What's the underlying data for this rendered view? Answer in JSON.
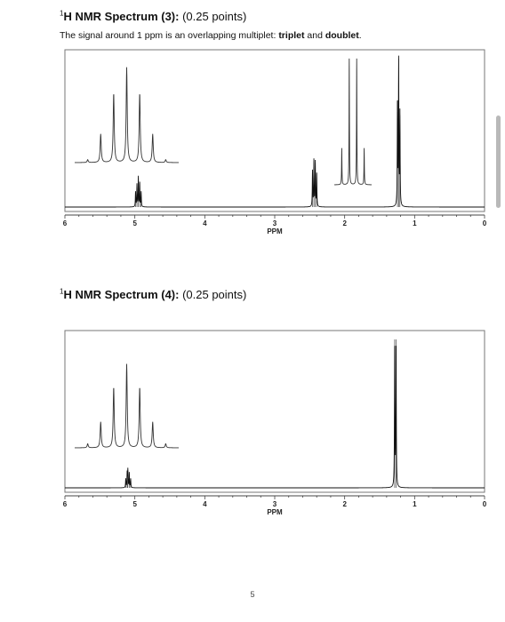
{
  "sections": [
    {
      "title_sup": "1",
      "title_bold": "H NMR Spectrum (3):",
      "title_points": " (0.25 points)",
      "note_parts": {
        "pre": "The signal around 1 ppm is an overlapping multiplet: ",
        "b1": "triplet",
        "mid": " and ",
        "b2": "doublet",
        "post": "."
      }
    },
    {
      "title_sup": "1",
      "title_bold": "H NMR Spectrum (4):",
      "title_points": " (0.25 points)"
    }
  ],
  "page_number": "5",
  "chart_data": [
    {
      "type": "line",
      "xlabel": "PPM",
      "xlim": [
        6,
        0
      ],
      "tick_labels": [
        "6",
        "5",
        "4",
        "3",
        "2",
        "1",
        "0"
      ],
      "peaks": [
        {
          "ppm": 4.95,
          "multiplicity": "septet-like",
          "lines": [
            [
              4.99,
              0.1
            ],
            [
              4.97,
              0.15
            ],
            [
              4.95,
              0.2
            ],
            [
              4.93,
              0.16
            ],
            [
              4.91,
              0.1
            ]
          ]
        },
        {
          "ppm": 2.43,
          "multiplicity": "quartet",
          "lines": [
            [
              2.46,
              0.24
            ],
            [
              2.44,
              0.31
            ],
            [
              2.42,
              0.3
            ],
            [
              2.4,
              0.22
            ]
          ]
        },
        {
          "ppm": 1.22,
          "multiplicity": "triplet + doublet",
          "lines": [
            [
              1.245,
              0.72
            ],
            [
              1.228,
              1.0
            ],
            [
              1.21,
              0.62
            ]
          ]
        }
      ],
      "insets": [
        {
          "of_ppm": 4.95,
          "relative_heights": [
            0.03,
            0.3,
            0.73,
            1.0,
            0.73,
            0.3,
            0.03
          ]
        },
        {
          "of_ppm": 1.22,
          "relative_heights": [
            0.29,
            1.0,
            1.0,
            0.29
          ]
        }
      ]
    },
    {
      "type": "line",
      "xlabel": "PPM",
      "xlim": [
        6,
        0
      ],
      "tick_labels": [
        "6",
        "5",
        "4",
        "3",
        "2",
        "1",
        "0"
      ],
      "peaks": [
        {
          "ppm": 5.1,
          "multiplicity": "septet",
          "lines": [
            [
              5.13,
              0.06
            ],
            [
              5.11,
              0.1
            ],
            [
              5.1,
              0.12
            ],
            [
              5.08,
              0.1
            ],
            [
              5.06,
              0.06
            ]
          ]
        },
        {
          "ppm": 1.27,
          "multiplicity": "doublet",
          "lines": [
            [
              1.285,
              1.0
            ],
            [
              1.265,
              1.0
            ]
          ]
        }
      ],
      "insets": [
        {
          "of_ppm": 5.1,
          "relative_heights": [
            0.04,
            0.26,
            0.61,
            0.84,
            0.61,
            0.26,
            0.04
          ]
        }
      ]
    }
  ]
}
